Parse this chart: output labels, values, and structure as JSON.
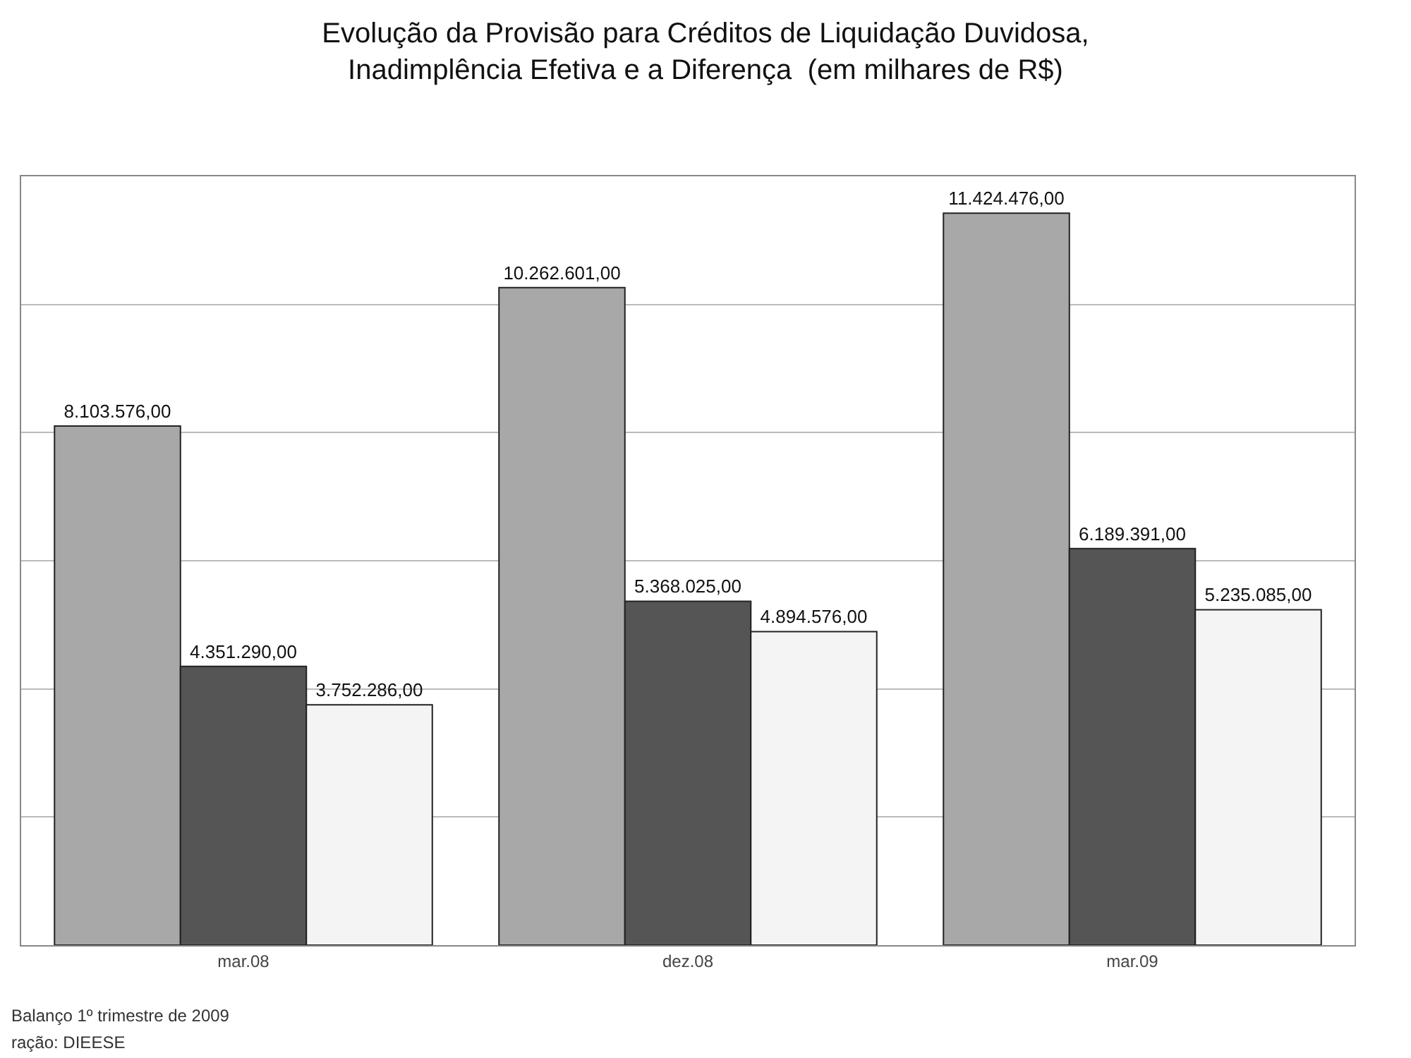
{
  "chart_data": {
    "type": "bar",
    "title": "Evolução da Provisão para Créditos de Liquidação Duvidosa,\nInadimplência Efetiva e a Diferença  (em milhares de R$)",
    "categories": [
      "mar.08",
      "dez.08",
      "mar.09"
    ],
    "series": [
      {
        "color": "#a8a8a8",
        "values": [
          8103576,
          10262601,
          11424476
        ],
        "value_labels": [
          "8.103.576,00",
          "10.262.601,00",
          "11.424.476,00"
        ]
      },
      {
        "color": "#555555",
        "values": [
          4351290,
          5368025,
          6189391
        ],
        "value_labels": [
          "4.351.290,00",
          "5.368.025,00",
          "6.189.391,00"
        ]
      },
      {
        "color": "#f4f4f4",
        "values": [
          3752286,
          4894576,
          5235085
        ],
        "value_labels": [
          "3.752.286,00",
          "4.894.576,00",
          "5.235.085,00"
        ]
      }
    ],
    "ylim": [
      0,
      12000000
    ],
    "yticks": [
      {
        "value": 0,
        "label": null
      },
      {
        "value": 2000000,
        "label": null
      },
      {
        "value": 4000000,
        "label": null
      },
      {
        "value": 6000000,
        "label": null
      },
      {
        "value": 8000000,
        "label": null
      },
      {
        "value": 10000000,
        "label": null
      }
    ],
    "grid": "y",
    "tick_labels": "x",
    "annotations": [
      "Balanço 1º trimestre de 2009",
      "ração: DIEESE"
    ]
  }
}
